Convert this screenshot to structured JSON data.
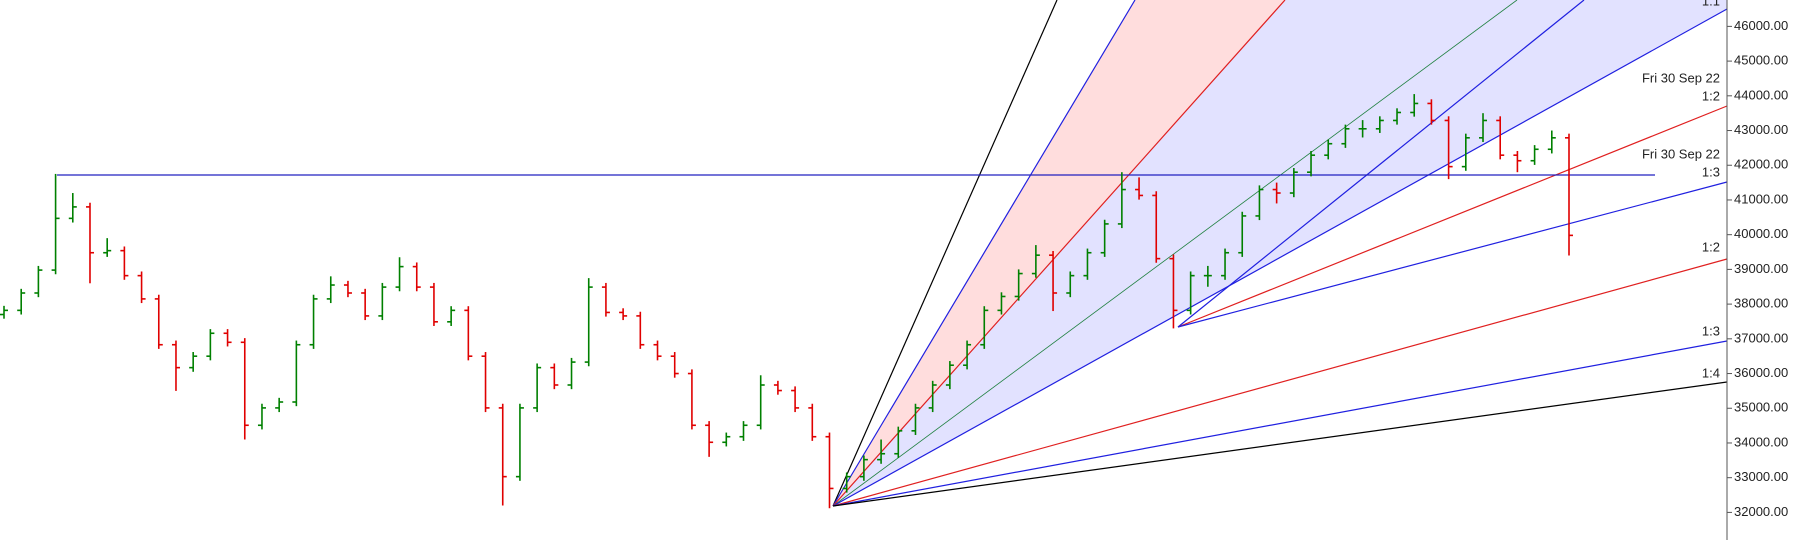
{
  "chart_data": {
    "type": "ohlc",
    "up_color": "#008000",
    "down_color": "#e00000",
    "ylim": [
      31205,
      46760
    ],
    "yticks": [
      {
        "value": 32000,
        "label": "32000.00"
      },
      {
        "value": 33000,
        "label": "33000.00"
      },
      {
        "value": 34000,
        "label": "34000.00"
      },
      {
        "value": 35000,
        "label": "35000.00"
      },
      {
        "value": 36000,
        "label": "36000.00"
      },
      {
        "value": 37000,
        "label": "37000.00"
      },
      {
        "value": 38000,
        "label": "38000.00"
      },
      {
        "value": 39000,
        "label": "39000.00"
      },
      {
        "value": 40000,
        "label": "40000.00"
      },
      {
        "value": 41000,
        "label": "41000.00"
      },
      {
        "value": 42000,
        "label": "42000.00"
      },
      {
        "value": 43000,
        "label": "43000.00"
      },
      {
        "value": 44000,
        "label": "44000.00"
      },
      {
        "value": 45000,
        "label": "45000.00"
      },
      {
        "value": 46000,
        "label": "46000.00"
      }
    ],
    "annotations": [
      "1:1",
      "Fri 30 Sep 22",
      "1:2",
      "Fri 30 Sep 22",
      "1:3",
      "1:2",
      "1:3",
      "1:4"
    ],
    "ohlc": [
      [
        37700,
        37950,
        37580,
        37820
      ],
      [
        37820,
        38440,
        37700,
        38320
      ],
      [
        38320,
        39100,
        38200,
        38980
      ],
      [
        38980,
        41750,
        38860,
        40470
      ],
      [
        40470,
        41200,
        40350,
        40800
      ],
      [
        40800,
        40920,
        38600,
        39480
      ],
      [
        39480,
        39900,
        39360,
        39540
      ],
      [
        39540,
        39660,
        38700,
        38820
      ],
      [
        38820,
        38940,
        38030,
        38150
      ],
      [
        38150,
        38270,
        36710,
        36830
      ],
      [
        36830,
        36950,
        35500,
        36170
      ],
      [
        36170,
        36620,
        36050,
        36500
      ],
      [
        36500,
        37280,
        36380,
        37160
      ],
      [
        37160,
        37280,
        36780,
        36900
      ],
      [
        36900,
        37020,
        34100,
        34510
      ],
      [
        34510,
        35130,
        34390,
        35010
      ],
      [
        35010,
        35300,
        34890,
        35180
      ],
      [
        35180,
        36950,
        35060,
        36830
      ],
      [
        36830,
        38270,
        36710,
        38150
      ],
      [
        38150,
        38800,
        38030,
        38550
      ],
      [
        38550,
        38670,
        38200,
        38320
      ],
      [
        38320,
        38440,
        37540,
        37660
      ],
      [
        37660,
        38610,
        37540,
        38490
      ],
      [
        38490,
        39350,
        38370,
        39080
      ],
      [
        39080,
        39200,
        38370,
        38490
      ],
      [
        38490,
        38610,
        37370,
        37490
      ],
      [
        37490,
        37940,
        37370,
        37820
      ],
      [
        37820,
        37940,
        36380,
        36500
      ],
      [
        36500,
        36620,
        34890,
        35010
      ],
      [
        35010,
        35130,
        32200,
        33030
      ],
      [
        33030,
        35130,
        32910,
        35010
      ],
      [
        35010,
        36290,
        34890,
        36170
      ],
      [
        36170,
        36290,
        35550,
        35670
      ],
      [
        35670,
        36450,
        35550,
        36330
      ],
      [
        36330,
        38750,
        36210,
        38490
      ],
      [
        38490,
        38610,
        37640,
        37760
      ],
      [
        37760,
        37880,
        37540,
        37660
      ],
      [
        37660,
        37780,
        36710,
        36830
      ],
      [
        36830,
        36950,
        36380,
        36500
      ],
      [
        36500,
        36620,
        35880,
        36000
      ],
      [
        36000,
        36120,
        34390,
        34510
      ],
      [
        34510,
        34630,
        33600,
        34020
      ],
      [
        34020,
        34300,
        33900,
        34180
      ],
      [
        34180,
        34630,
        34060,
        34510
      ],
      [
        34510,
        35950,
        34390,
        35670
      ],
      [
        35670,
        35790,
        35390,
        35510
      ],
      [
        35510,
        35630,
        34890,
        35010
      ],
      [
        35010,
        35130,
        34060,
        34180
      ],
      [
        34180,
        34300,
        32120,
        32690
      ],
      [
        32690,
        33150,
        32570,
        33030
      ],
      [
        33030,
        33640,
        32910,
        33520
      ],
      [
        33520,
        34100,
        33400,
        33690
      ],
      [
        33690,
        34470,
        33570,
        34350
      ],
      [
        34350,
        35130,
        34230,
        35010
      ],
      [
        35010,
        35790,
        34890,
        35670
      ],
      [
        35670,
        36360,
        35550,
        36240
      ],
      [
        36240,
        36950,
        36120,
        36830
      ],
      [
        36830,
        37940,
        36710,
        37820
      ],
      [
        37820,
        38340,
        37700,
        38220
      ],
      [
        38220,
        39000,
        38100,
        38880
      ],
      [
        38880,
        39700,
        38760,
        39410
      ],
      [
        39410,
        39530,
        37800,
        38320
      ],
      [
        38320,
        38940,
        38200,
        38820
      ],
      [
        38820,
        39600,
        38700,
        39480
      ],
      [
        39480,
        40430,
        39360,
        40310
      ],
      [
        40310,
        41800,
        40190,
        41300
      ],
      [
        41300,
        41650,
        41010,
        41130
      ],
      [
        41130,
        41250,
        39190,
        39310
      ],
      [
        39310,
        39430,
        37300,
        37820
      ],
      [
        37820,
        38940,
        37700,
        38820
      ],
      [
        38820,
        39100,
        38500,
        38820
      ],
      [
        38820,
        39600,
        38700,
        39480
      ],
      [
        39480,
        40660,
        39360,
        40540
      ],
      [
        40540,
        41420,
        40420,
        41300
      ],
      [
        41300,
        41500,
        40900,
        41200
      ],
      [
        41200,
        41920,
        41080,
        41800
      ],
      [
        41800,
        42410,
        41680,
        42290
      ],
      [
        42290,
        42740,
        42170,
        42620
      ],
      [
        42620,
        43170,
        42500,
        43050
      ],
      [
        43050,
        43300,
        42800,
        43050
      ],
      [
        43050,
        43410,
        42930,
        43290
      ],
      [
        43290,
        43640,
        43170,
        43520
      ],
      [
        43520,
        44050,
        43400,
        43780
      ],
      [
        43780,
        43900,
        43170,
        43290
      ],
      [
        43290,
        43410,
        41600,
        41960
      ],
      [
        41960,
        42910,
        41840,
        42790
      ],
      [
        42790,
        43500,
        42670,
        43290
      ],
      [
        43290,
        43410,
        42170,
        42290
      ],
      [
        42290,
        42410,
        41800,
        42130
      ],
      [
        42130,
        42580,
        42010,
        42460
      ],
      [
        42460,
        43000,
        42340,
        42790
      ],
      [
        42790,
        42910,
        39400,
        39980
      ]
    ]
  }
}
